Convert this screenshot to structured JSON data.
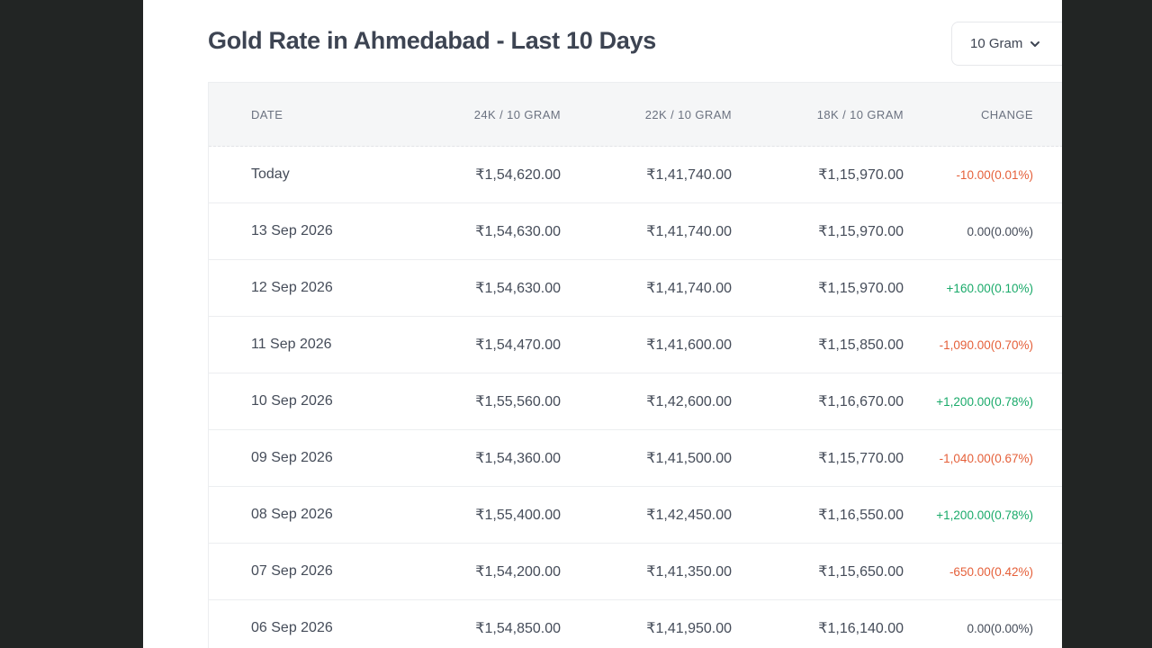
{
  "title": "Gold Rate in Ahmedabad - Last 10 Days",
  "unit_selector": {
    "value": "10 Gram"
  },
  "colors": {
    "negative": "#e5603a",
    "positive": "#1aaa6a",
    "neutral": "#454c59"
  },
  "table": {
    "headers": {
      "date": "DATE",
      "k24": "24K / 10 GRAM",
      "k22": "22K / 10 GRAM",
      "k18": "18K / 10 GRAM",
      "change": "CHANGE"
    },
    "rows": [
      {
        "date": "Today",
        "k24": "₹1,54,620.00",
        "k22": "₹1,41,740.00",
        "k18": "₹1,15,970.00",
        "change": "-10.00(0.01%)",
        "trend": "neg"
      },
      {
        "date": "13 Sep 2026",
        "k24": "₹1,54,630.00",
        "k22": "₹1,41,740.00",
        "k18": "₹1,15,970.00",
        "change": "0.00(0.00%)",
        "trend": "neu"
      },
      {
        "date": "12 Sep 2026",
        "k24": "₹1,54,630.00",
        "k22": "₹1,41,740.00",
        "k18": "₹1,15,970.00",
        "change": "+160.00(0.10%)",
        "trend": "pos"
      },
      {
        "date": "11 Sep 2026",
        "k24": "₹1,54,470.00",
        "k22": "₹1,41,600.00",
        "k18": "₹1,15,850.00",
        "change": "-1,090.00(0.70%)",
        "trend": "neg"
      },
      {
        "date": "10 Sep 2026",
        "k24": "₹1,55,560.00",
        "k22": "₹1,42,600.00",
        "k18": "₹1,16,670.00",
        "change": "+1,200.00(0.78%)",
        "trend": "pos"
      },
      {
        "date": "09 Sep 2026",
        "k24": "₹1,54,360.00",
        "k22": "₹1,41,500.00",
        "k18": "₹1,15,770.00",
        "change": "-1,040.00(0.67%)",
        "trend": "neg"
      },
      {
        "date": "08 Sep 2026",
        "k24": "₹1,55,400.00",
        "k22": "₹1,42,450.00",
        "k18": "₹1,16,550.00",
        "change": "+1,200.00(0.78%)",
        "trend": "pos"
      },
      {
        "date": "07 Sep 2026",
        "k24": "₹1,54,200.00",
        "k22": "₹1,41,350.00",
        "k18": "₹1,15,650.00",
        "change": "-650.00(0.42%)",
        "trend": "neg"
      },
      {
        "date": "06 Sep 2026",
        "k24": "₹1,54,850.00",
        "k22": "₹1,41,950.00",
        "k18": "₹1,16,140.00",
        "change": "0.00(0.00%)",
        "trend": "neu"
      }
    ]
  }
}
